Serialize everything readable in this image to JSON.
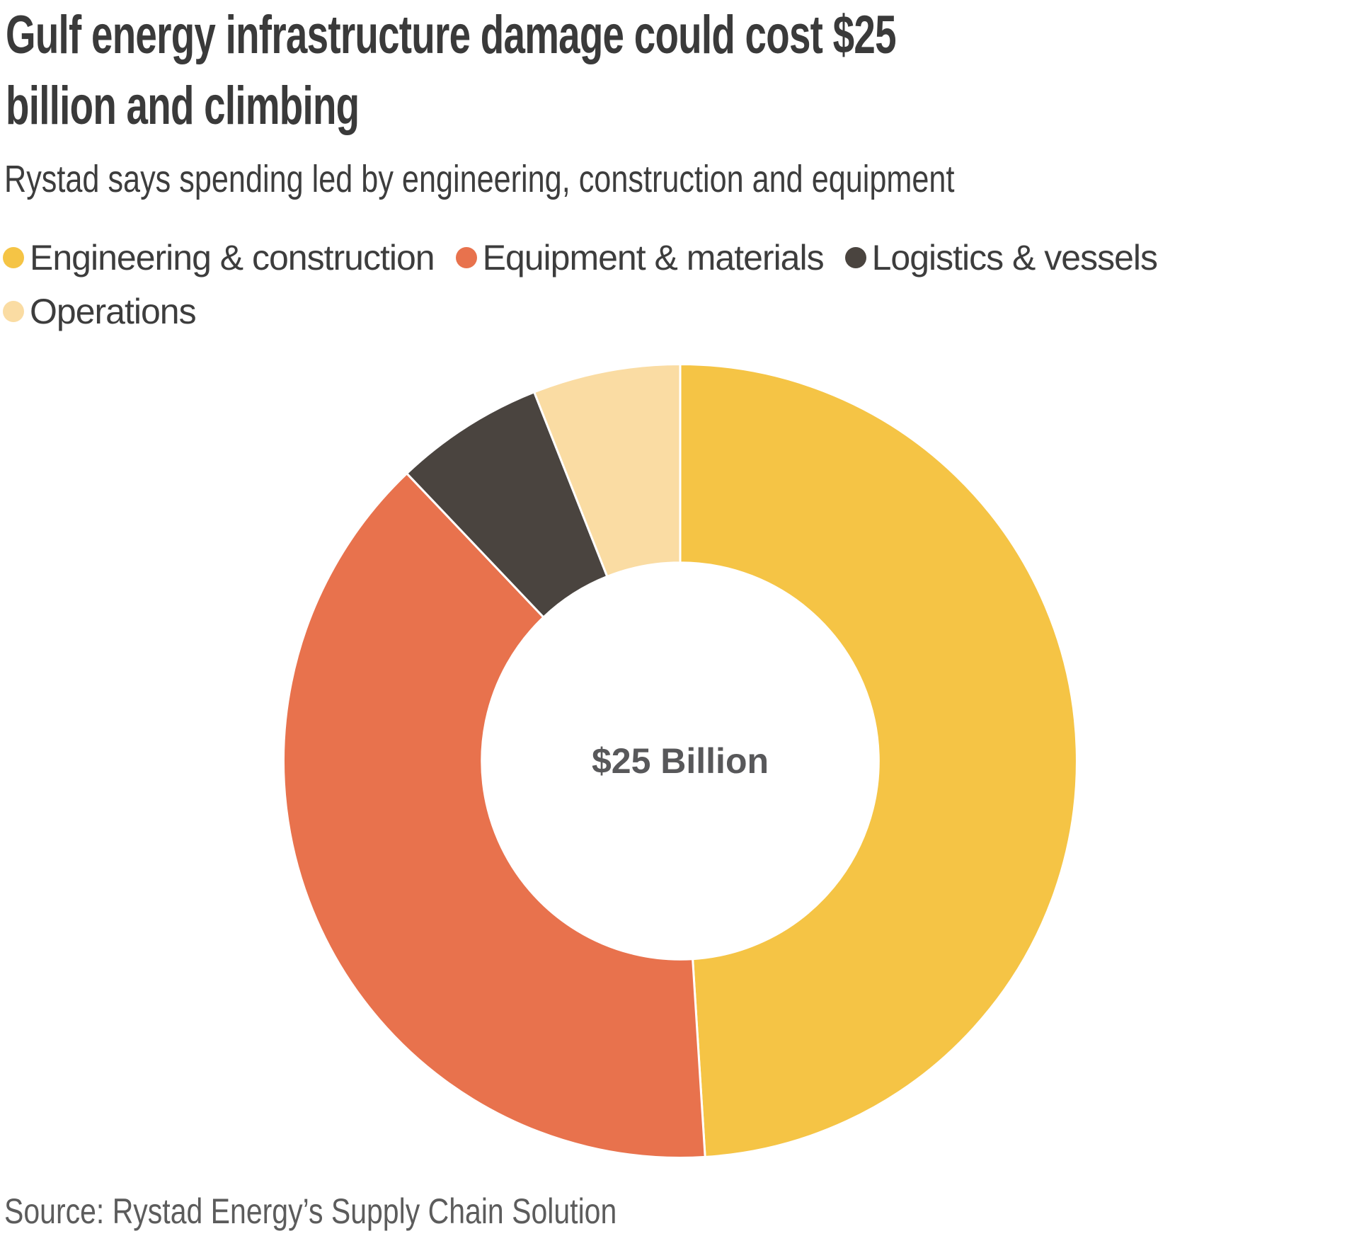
{
  "header": {
    "title_line1": "Gulf energy infrastructure damage could cost $25",
    "title_line2": "billion and climbing",
    "subtitle": "Rystad says spending led by engineering, construction and equipment"
  },
  "legend": {
    "items": [
      {
        "label": "Engineering & construction",
        "color": "#F5C445"
      },
      {
        "label": "Equipment & materials",
        "color": "#E8724D"
      },
      {
        "label": "Logistics & vessels",
        "color": "#4A443F"
      },
      {
        "label": "Operations",
        "color": "#FADCA3"
      }
    ]
  },
  "chart_data": {
    "type": "pie",
    "subtype": "donut",
    "title": "Gulf energy infrastructure damage could cost $25 billion and climbing",
    "subtitle": "Rystad says spending led by engineering, construction and equipment",
    "center_label": "$25 Billion",
    "total_label": "$25 Billion",
    "start_angle_deg": 0,
    "direction": "clockwise",
    "inner_radius_ratio": 0.5,
    "legend_position": "top",
    "separator_color": "#FFFFFF",
    "slices": [
      {
        "label": "Engineering & construction",
        "percent": 49.0,
        "color": "#F5C445"
      },
      {
        "label": "Equipment & materials",
        "percent": 38.9,
        "color": "#E8724D"
      },
      {
        "label": "Logistics & vessels",
        "percent": 6.1,
        "color": "#4A443F"
      },
      {
        "label": "Operations",
        "percent": 6.0,
        "color": "#FADCA3"
      }
    ]
  },
  "source": "Source: Rystad Energy’s Supply Chain Solution"
}
